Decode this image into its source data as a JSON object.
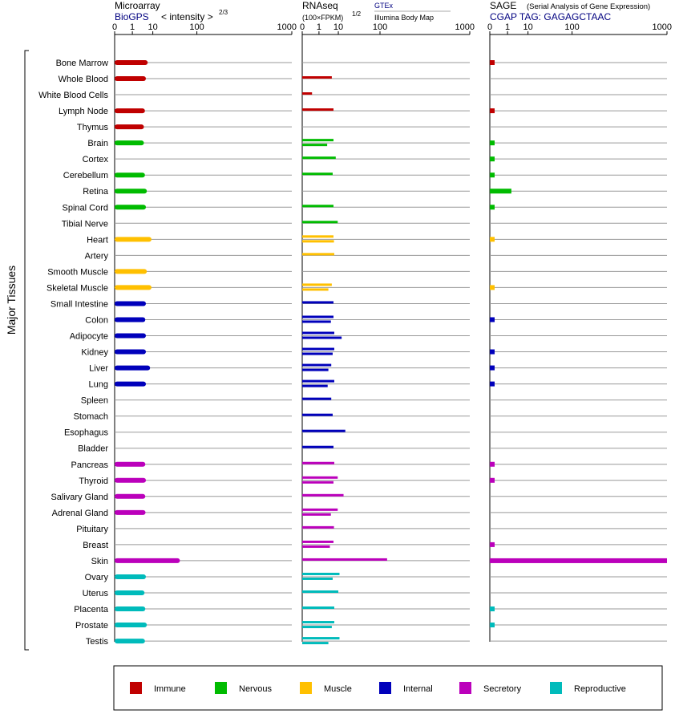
{
  "panels": [
    {
      "title": "Microarray",
      "subtitle": "BioGPS",
      "axis_label_prefix": "< intensity >",
      "axis_label_exponent": "2/3",
      "ticks": [
        "0",
        "1",
        "10",
        "100",
        "1000"
      ]
    },
    {
      "title": "RNAseq",
      "subtitle": "(100×FPKM)",
      "subtitle_exponent": "1/2",
      "source_link": "GTEx",
      "source_sub": "Illumina Body Map",
      "ticks": [
        "0",
        "1",
        "10",
        "100",
        "1000"
      ]
    },
    {
      "title": "SAGE",
      "title_note": "(Serial Analysis of Gene Expression)",
      "subtitle": "CGAP TAG: GAGAGCTAAC",
      "ticks": [
        "0",
        "1",
        "10",
        "100",
        "1000"
      ]
    }
  ],
  "y_axis_label": "Major Tissues",
  "colors": {
    "Immune": "#c00000",
    "Nervous": "#00bb00",
    "Muscle": "#ffc000",
    "Internal": "#0000bb",
    "Secretory": "#bb00bb",
    "Reproductive": "#00bbbb",
    "accent_text": "#000080"
  },
  "legend": [
    "Immune",
    "Nervous",
    "Muscle",
    "Internal",
    "Secretory",
    "Reproductive"
  ],
  "chart_data": {
    "type": "bar",
    "orientation": "horizontal",
    "x_scale": "sqrt-compressed (ticks 0, 1, 10, 100, 1000)",
    "xlim": [
      0,
      1000
    ],
    "categories": [
      "Bone Marrow",
      "Whole Blood",
      "White Blood Cells",
      "Lymph Node",
      "Thymus",
      "Brain",
      "Cortex",
      "Cerebellum",
      "Retina",
      "Spinal Cord",
      "Tibial Nerve",
      "Heart",
      "Artery",
      "Smooth Muscle",
      "Skeletal Muscle",
      "Small Intestine",
      "Colon",
      "Adipocyte",
      "Kidney",
      "Liver",
      "Lung",
      "Spleen",
      "Stomach",
      "Esophagus",
      "Bladder",
      "Pancreas",
      "Thyroid",
      "Salivary Gland",
      "Adrenal Gland",
      "Pituitary",
      "Breast",
      "Skin",
      "Ovary",
      "Uterus",
      "Placenta",
      "Prostate",
      "Testis"
    ],
    "groups": [
      "Immune",
      "Immune",
      "Immune",
      "Immune",
      "Immune",
      "Nervous",
      "Nervous",
      "Nervous",
      "Nervous",
      "Nervous",
      "Nervous",
      "Muscle",
      "Muscle",
      "Muscle",
      "Muscle",
      "Internal",
      "Internal",
      "Internal",
      "Internal",
      "Internal",
      "Internal",
      "Internal",
      "Internal",
      "Internal",
      "Internal",
      "Secretory",
      "Secretory",
      "Secretory",
      "Secretory",
      "Secretory",
      "Secretory",
      "Secretory",
      "Reproductive",
      "Reproductive",
      "Reproductive",
      "Reproductive",
      "Reproductive"
    ],
    "series": [
      {
        "name": "Microarray",
        "values": [
          6.5,
          5.5,
          null,
          5,
          4.5,
          4.5,
          null,
          5,
          6,
          5.5,
          null,
          9,
          null,
          6,
          9,
          5.5,
          5.2,
          5.5,
          5.5,
          8,
          5.5,
          null,
          null,
          null,
          null,
          5.2,
          5.5,
          5.2,
          5.3,
          null,
          null,
          50,
          5.5,
          4.8,
          5.2,
          6,
          5
        ]
      },
      {
        "name": "RNAseq (GTEx)",
        "values": [
          null,
          5.5,
          0.2,
          6.5,
          null,
          6.5,
          8,
          6,
          null,
          6.5,
          9.5,
          6.5,
          7,
          null,
          5.5,
          6.5,
          6.5,
          7,
          7,
          5.2,
          7,
          5.2,
          6,
          17,
          6.5,
          7,
          9.5,
          15,
          9.5,
          6.8,
          6.5,
          130,
          11,
          10,
          7,
          7,
          11
        ]
      },
      {
        "name": "RNAseq (Illumina Body Map)",
        "values": [
          null,
          null,
          null,
          null,
          null,
          3.3,
          null,
          null,
          null,
          null,
          null,
          6.8,
          null,
          null,
          3.8,
          null,
          5,
          13,
          6,
          3.8,
          3.5,
          null,
          null,
          null,
          null,
          null,
          6.5,
          null,
          5,
          null,
          4.5,
          null,
          6,
          null,
          null,
          5.5,
          3.8
        ]
      },
      {
        "name": "SAGE",
        "values": [
          0.02,
          null,
          null,
          0.02,
          null,
          0.02,
          0.02,
          0.02,
          1.8,
          0.02,
          null,
          0.02,
          null,
          null,
          0.02,
          null,
          0.02,
          null,
          0.02,
          0.02,
          0.02,
          null,
          null,
          null,
          null,
          0.02,
          0.02,
          null,
          null,
          null,
          0.02,
          1000,
          null,
          null,
          0.02,
          0.02,
          null
        ]
      }
    ]
  }
}
